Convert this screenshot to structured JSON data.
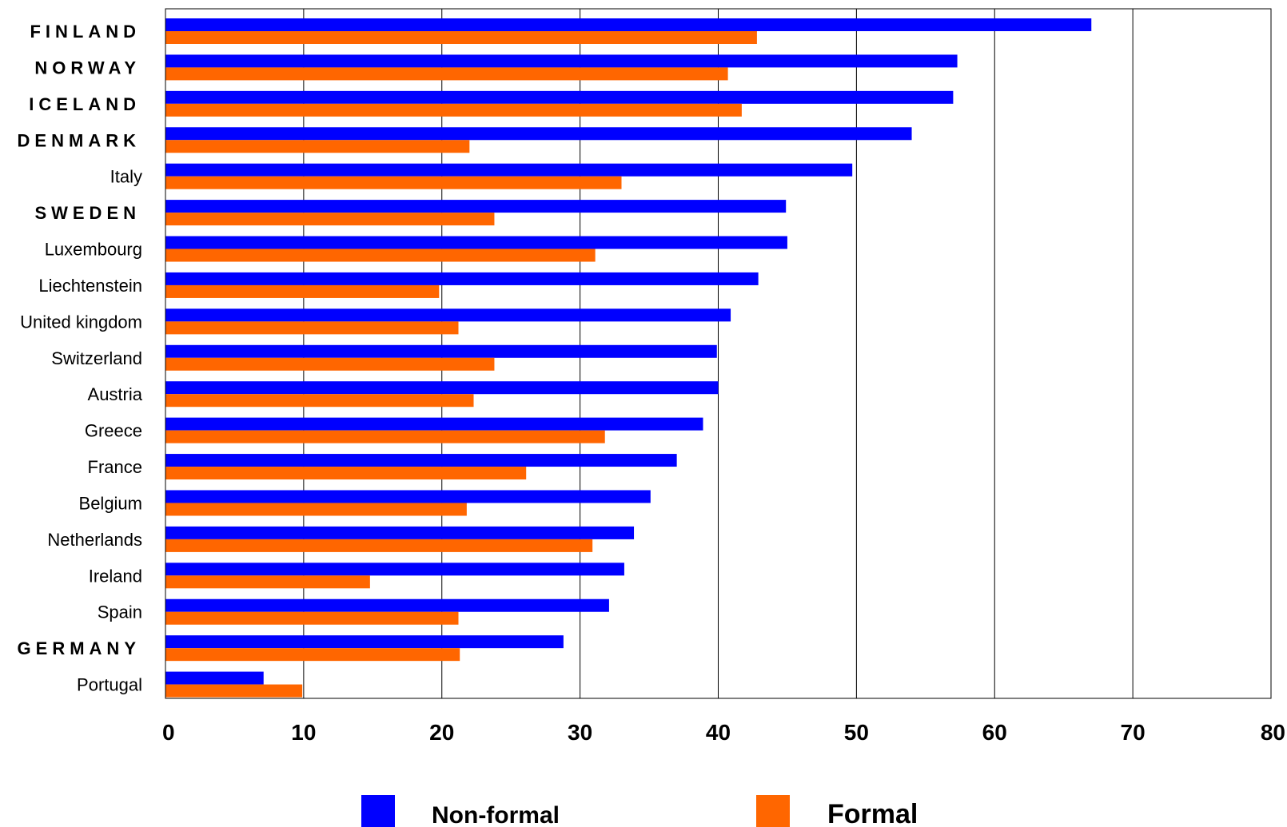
{
  "chart_data": {
    "type": "bar",
    "orientation": "horizontal",
    "categories": [
      "F I N L A N D",
      "N O R W A Y",
      "I C E L A N D",
      "D E N M A R K",
      "Italy",
      "S W E D E N",
      "Luxembourg",
      "Liechtenstein",
      "United kingdom",
      "Switzerland",
      "Austria",
      "Greece",
      "France",
      "Belgium",
      "Netherlands",
      "Ireland",
      "Spain",
      "G E R M A N Y",
      "Portugal"
    ],
    "emphasized_categories": [
      "F I N L A N D",
      "N O R W A Y",
      "I C E L A N D",
      "D E N M A R K",
      "S W E D E N",
      "G E R M A N Y"
    ],
    "series": [
      {
        "name": "Non-formal",
        "color": "#0000ff",
        "values": [
          67,
          57.3,
          57,
          54,
          49.7,
          44.9,
          45,
          42.9,
          40.9,
          39.9,
          40,
          38.9,
          37,
          35.1,
          33.9,
          33.2,
          32.1,
          28.8,
          7.1
        ]
      },
      {
        "name": "Formal",
        "color": "#ff6600",
        "values": [
          42.8,
          40.7,
          41.7,
          22,
          33,
          23.8,
          31.1,
          19.8,
          21.2,
          23.8,
          22.3,
          31.8,
          26.1,
          21.8,
          30.9,
          14.8,
          21.2,
          21.3,
          9.9
        ]
      }
    ],
    "x_ticks": [
      "0",
      "10",
      "20",
      "30",
      "40",
      "50",
      "60",
      "70",
      "80"
    ],
    "xlim": [
      0,
      80
    ],
    "grid": "vertical",
    "legend": {
      "placement": "bottom",
      "items": [
        {
          "label": "Non-formal",
          "color": "#0000ff"
        },
        {
          "label": "Formal",
          "color": "#ff6600"
        }
      ]
    },
    "title": "",
    "xlabel": "",
    "ylabel": ""
  }
}
